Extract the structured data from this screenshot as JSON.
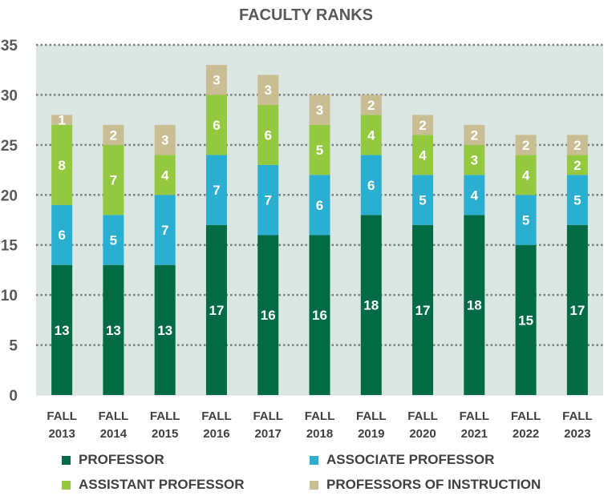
{
  "chart_data": {
    "type": "bar",
    "stacked": true,
    "title": "FACULTY RANKS",
    "categories": [
      [
        "FALL",
        "2013"
      ],
      [
        "FALL",
        "2014"
      ],
      [
        "FALL",
        "2015"
      ],
      [
        "FALL",
        "2016"
      ],
      [
        "FALL",
        "2017"
      ],
      [
        "FALL",
        "2018"
      ],
      [
        "FALL",
        "2019"
      ],
      [
        "FALL",
        "2020"
      ],
      [
        "FALL",
        "2021"
      ],
      [
        "FALL",
        "2022"
      ],
      [
        "FALL",
        "2023"
      ]
    ],
    "series": [
      {
        "name": "PROFESSOR",
        "color": "#006b45",
        "values": [
          13,
          13,
          13,
          17,
          16,
          16,
          18,
          17,
          18,
          15,
          17
        ]
      },
      {
        "name": "ASSOCIATE PROFESSOR",
        "color": "#2bafd0",
        "values": [
          6,
          5,
          7,
          7,
          7,
          6,
          6,
          5,
          4,
          5,
          5
        ]
      },
      {
        "name": "ASSISTANT PROFESSOR",
        "color": "#93c83f",
        "values": [
          8,
          7,
          4,
          6,
          6,
          5,
          4,
          4,
          3,
          4,
          2
        ]
      },
      {
        "name": "PROFESSORS OF INSTRUCTION",
        "color": "#c9bd93",
        "values": [
          1,
          2,
          3,
          3,
          3,
          3,
          2,
          2,
          2,
          2,
          2
        ]
      }
    ],
    "ylim": [
      0,
      35
    ],
    "yticks": [
      0,
      5,
      10,
      15,
      20,
      25,
      30,
      35
    ],
    "grid": true,
    "plot_background": "#d9e6e2",
    "legend_position": "bottom",
    "data_labels": true
  }
}
